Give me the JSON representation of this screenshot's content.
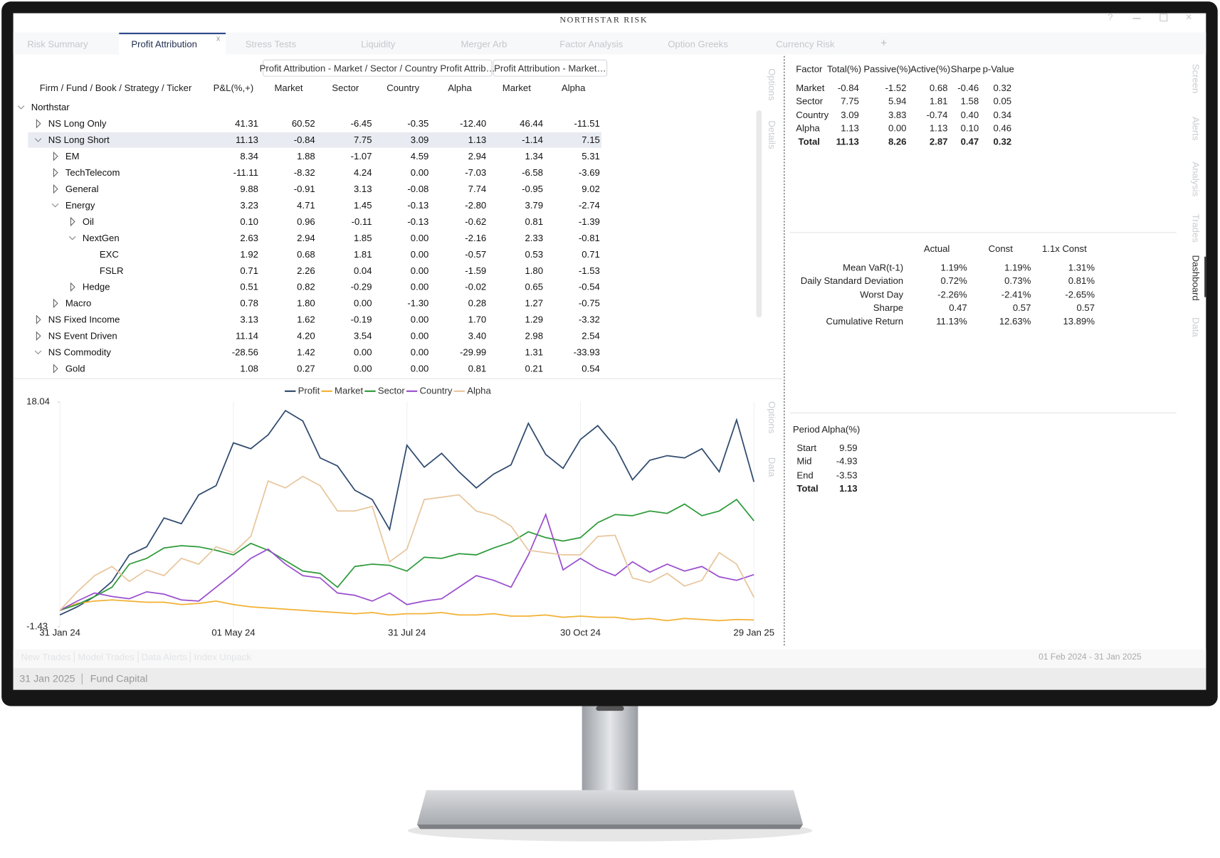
{
  "window": {
    "title": "NORTHSTAR RISK",
    "tabs": [
      "Risk Summary",
      "Profit Attribution",
      "Stress Tests",
      "Liquidity",
      "Merger Arb",
      "Factor Analysis",
      "Option Greeks",
      "Currency Risk"
    ],
    "active_tab": 1
  },
  "sub_tabs": [
    "Profit Attribution - Market / Sector / Country Profit Attrib…",
    "Profit Attribution - Market…"
  ],
  "side_panels": {
    "table": [
      "Options",
      "Details"
    ],
    "chart": [
      "Options",
      "Data"
    ],
    "right": [
      "Screen",
      "Alerts",
      "Analysis",
      "Trades",
      "Dashboard",
      "Data"
    ],
    "right_active": 4
  },
  "table": {
    "columns": [
      "Firm / Fund / Book / Strategy / Ticker",
      "P&L(%,+)",
      "Market",
      "Sector",
      "Country",
      "Alpha",
      "Market",
      "Alpha"
    ],
    "selected_row": 2,
    "rows": [
      {
        "label": "Northstar",
        "level": 0,
        "state": "expanded",
        "values": []
      },
      {
        "label": "NS Long Only",
        "level": 1,
        "state": "collapsed",
        "values": [
          "41.31",
          "60.52",
          "-6.45",
          "-0.35",
          "-12.40",
          "46.44",
          "-11.51"
        ]
      },
      {
        "label": "NS Long Short",
        "level": 1,
        "state": "expanded",
        "values": [
          "11.13",
          "-0.84",
          "7.75",
          "3.09",
          "1.13",
          "-1.14",
          "7.15"
        ]
      },
      {
        "label": "EM",
        "level": 2,
        "state": "collapsed",
        "values": [
          "8.34",
          "1.88",
          "-1.07",
          "4.59",
          "2.94",
          "1.34",
          "5.31"
        ]
      },
      {
        "label": "TechTelecom",
        "level": 2,
        "state": "collapsed",
        "values": [
          "-11.11",
          "-8.32",
          "4.24",
          "0.00",
          "-7.03",
          "-6.58",
          "-3.69"
        ]
      },
      {
        "label": "General",
        "level": 2,
        "state": "collapsed",
        "values": [
          "9.88",
          "-0.91",
          "3.13",
          "-0.08",
          "7.74",
          "-0.95",
          "9.02"
        ]
      },
      {
        "label": "Energy",
        "level": 2,
        "state": "expanded",
        "values": [
          "3.23",
          "4.71",
          "1.45",
          "-0.13",
          "-2.80",
          "3.79",
          "-2.74"
        ]
      },
      {
        "label": "Oil",
        "level": 3,
        "state": "collapsed",
        "values": [
          "0.10",
          "0.96",
          "-0.11",
          "-0.13",
          "-0.62",
          "0.81",
          "-1.39"
        ]
      },
      {
        "label": "NextGen",
        "level": 3,
        "state": "expanded",
        "values": [
          "2.63",
          "2.94",
          "1.85",
          "0.00",
          "-2.16",
          "2.33",
          "-0.81"
        ]
      },
      {
        "label": "EXC",
        "level": 4,
        "state": "leaf",
        "values": [
          "1.92",
          "0.68",
          "1.81",
          "0.00",
          "-0.57",
          "0.53",
          "0.71"
        ]
      },
      {
        "label": "FSLR",
        "level": 4,
        "state": "leaf",
        "values": [
          "0.71",
          "2.26",
          "0.04",
          "0.00",
          "-1.59",
          "1.80",
          "-1.53"
        ]
      },
      {
        "label": "Hedge",
        "level": 3,
        "state": "collapsed",
        "values": [
          "0.51",
          "0.82",
          "-0.29",
          "0.00",
          "-0.02",
          "0.65",
          "-0.54"
        ]
      },
      {
        "label": "Macro",
        "level": 2,
        "state": "collapsed",
        "values": [
          "0.78",
          "1.80",
          "0.00",
          "-1.30",
          "0.28",
          "1.27",
          "-0.75"
        ]
      },
      {
        "label": "NS Fixed Income",
        "level": 1,
        "state": "collapsed",
        "values": [
          "3.13",
          "1.62",
          "-0.19",
          "0.00",
          "1.70",
          "1.29",
          "-3.32"
        ]
      },
      {
        "label": "NS Event Driven",
        "level": 1,
        "state": "collapsed",
        "values": [
          "11.14",
          "4.20",
          "3.54",
          "0.00",
          "3.40",
          "2.98",
          "2.54"
        ]
      },
      {
        "label": "NS Commodity",
        "level": 1,
        "state": "expanded",
        "values": [
          "-28.56",
          "1.42",
          "0.00",
          "0.00",
          "-29.99",
          "1.31",
          "-33.93"
        ]
      },
      {
        "label": "Gold",
        "level": 2,
        "state": "collapsed",
        "values": [
          "1.08",
          "0.27",
          "0.00",
          "0.00",
          "0.81",
          "0.21",
          "0.54"
        ]
      }
    ]
  },
  "factor_table": {
    "columns": [
      "Factor",
      "Total(%)",
      "Passive(%)",
      "Active(%)",
      "Sharpe",
      "p-Value"
    ],
    "rows": [
      [
        "Market",
        "-0.84",
        "-1.52",
        "0.68",
        "-0.46",
        "0.32"
      ],
      [
        "Sector",
        "7.75",
        "5.94",
        "1.81",
        "1.58",
        "0.05"
      ],
      [
        "Country",
        "3.09",
        "3.83",
        "-0.74",
        "0.40",
        "0.34"
      ],
      [
        "Alpha",
        "1.13",
        "0.00",
        "1.13",
        "0.10",
        "0.46"
      ]
    ],
    "total": [
      "Total",
      "11.13",
      "8.26",
      "2.87",
      "0.47",
      "0.32"
    ]
  },
  "risk_table": {
    "columns": [
      "Actual",
      "Const",
      "1.1x Const"
    ],
    "rows": [
      {
        "label": "Mean VaR(t-1)",
        "values": [
          "1.19%",
          "1.19%",
          "1.31%"
        ]
      },
      {
        "label": "Daily Standard Deviation",
        "values": [
          "0.72%",
          "0.73%",
          "0.81%"
        ]
      },
      {
        "label": "Worst Day",
        "values": [
          "-2.26%",
          "-2.41%",
          "-2.65%"
        ]
      },
      {
        "label": "Sharpe",
        "values": [
          "0.47",
          "0.57",
          "0.57"
        ]
      },
      {
        "label": "Cumulative Return",
        "values": [
          "11.13%",
          "12.63%",
          "13.89%"
        ]
      }
    ]
  },
  "period_table": {
    "columns": [
      "Period",
      "Alpha(%)"
    ],
    "rows": [
      [
        "Start",
        "9.59"
      ],
      [
        "Mid",
        "-4.93"
      ],
      [
        "End",
        "-3.53"
      ]
    ],
    "total": [
      "Total",
      "1.13"
    ]
  },
  "footer": {
    "links": [
      "New Trades",
      "Model Trades",
      "Data Alerts",
      "Index Unpack"
    ],
    "date_range": "01 Feb 2024 - 31 Jan 2025",
    "status": [
      "31 Jan 2025",
      "Fund Capital"
    ]
  },
  "chart_data": {
    "type": "line",
    "ylim": [
      -1.43,
      18.04
    ],
    "yticks": [
      -1.43,
      18.04
    ],
    "x": [
      "31 Jan 24",
      null,
      null,
      null,
      null,
      null,
      null,
      null,
      null,
      null,
      "01 May 24",
      null,
      null,
      null,
      null,
      null,
      null,
      null,
      null,
      null,
      "31 Jul 24",
      null,
      null,
      null,
      null,
      null,
      null,
      null,
      null,
      null,
      "30 Oct 24",
      null,
      null,
      null,
      null,
      null,
      null,
      null,
      null,
      null,
      "29 Jan 25"
    ],
    "series": [
      {
        "name": "Profit",
        "color": "#2f4a6e",
        "values": [
          -0.4,
          0.3,
          1.2,
          2.5,
          4.8,
          5.5,
          8.0,
          7.5,
          10.0,
          10.8,
          14.5,
          14.0,
          15.2,
          17.3,
          16.4,
          13.2,
          12.5,
          10.4,
          9.6,
          7.0,
          14.3,
          12.4,
          13.6,
          12.0,
          10.6,
          11.8,
          12.6,
          16.2,
          13.5,
          12.3,
          14.8,
          16.0,
          14.2,
          11.3,
          13.0,
          13.4,
          13.2,
          14.0,
          12.0,
          16.5,
          11.13
        ]
      },
      {
        "name": "Market",
        "color": "#f2b134",
        "values": [
          0.0,
          0.6,
          0.8,
          0.9,
          0.8,
          0.7,
          0.7,
          0.5,
          0.6,
          0.8,
          0.5,
          0.3,
          0.2,
          0.1,
          0.0,
          -0.1,
          -0.2,
          -0.3,
          -0.2,
          -0.4,
          -0.3,
          -0.3,
          -0.2,
          -0.4,
          -0.4,
          -0.3,
          -0.5,
          -0.5,
          -0.4,
          -0.6,
          -0.5,
          -0.6,
          -0.6,
          -0.8,
          -0.7,
          -0.9,
          -0.7,
          -0.8,
          -0.9,
          -0.8,
          -0.84
        ]
      },
      {
        "name": "Sector",
        "color": "#2e9b3a",
        "values": [
          0.0,
          0.5,
          1.2,
          2.0,
          4.0,
          4.5,
          5.4,
          5.6,
          5.5,
          5.2,
          4.8,
          5.8,
          5.2,
          4.3,
          3.4,
          3.2,
          2.0,
          3.8,
          4.0,
          3.9,
          3.4,
          4.6,
          4.5,
          4.9,
          4.8,
          5.4,
          5.9,
          6.8,
          6.3,
          6.0,
          6.3,
          7.6,
          8.3,
          8.2,
          8.6,
          8.4,
          9.2,
          8.2,
          8.6,
          9.6,
          7.75
        ]
      },
      {
        "name": "Country",
        "color": "#9b4fcf",
        "values": [
          0.0,
          0.8,
          1.5,
          1.2,
          1.0,
          1.6,
          1.4,
          0.9,
          0.8,
          2.0,
          3.2,
          4.5,
          5.3,
          4.0,
          3.0,
          2.8,
          1.5,
          1.3,
          0.8,
          1.5,
          0.5,
          0.8,
          1.0,
          2.0,
          3.0,
          2.6,
          2.0,
          4.8,
          8.3,
          3.5,
          4.5,
          3.6,
          3.0,
          4.2,
          3.3,
          4.0,
          3.4,
          3.8,
          2.9,
          2.6,
          3.09
        ]
      },
      {
        "name": "Alpha",
        "color": "#e8c69d",
        "values": [
          0.0,
          1.6,
          3.0,
          3.8,
          2.5,
          3.5,
          3.0,
          4.5,
          4.0,
          5.5,
          5.0,
          6.4,
          11.2,
          10.6,
          11.6,
          10.8,
          8.6,
          8.6,
          9.0,
          4.2,
          5.3,
          9.6,
          9.8,
          10.0,
          8.6,
          8.2,
          7.3,
          5.2,
          5.0,
          4.8,
          4.8,
          6.4,
          6.5,
          2.8,
          2.4,
          3.2,
          2.1,
          2.6,
          5.0,
          4.0,
          1.13
        ]
      }
    ]
  }
}
